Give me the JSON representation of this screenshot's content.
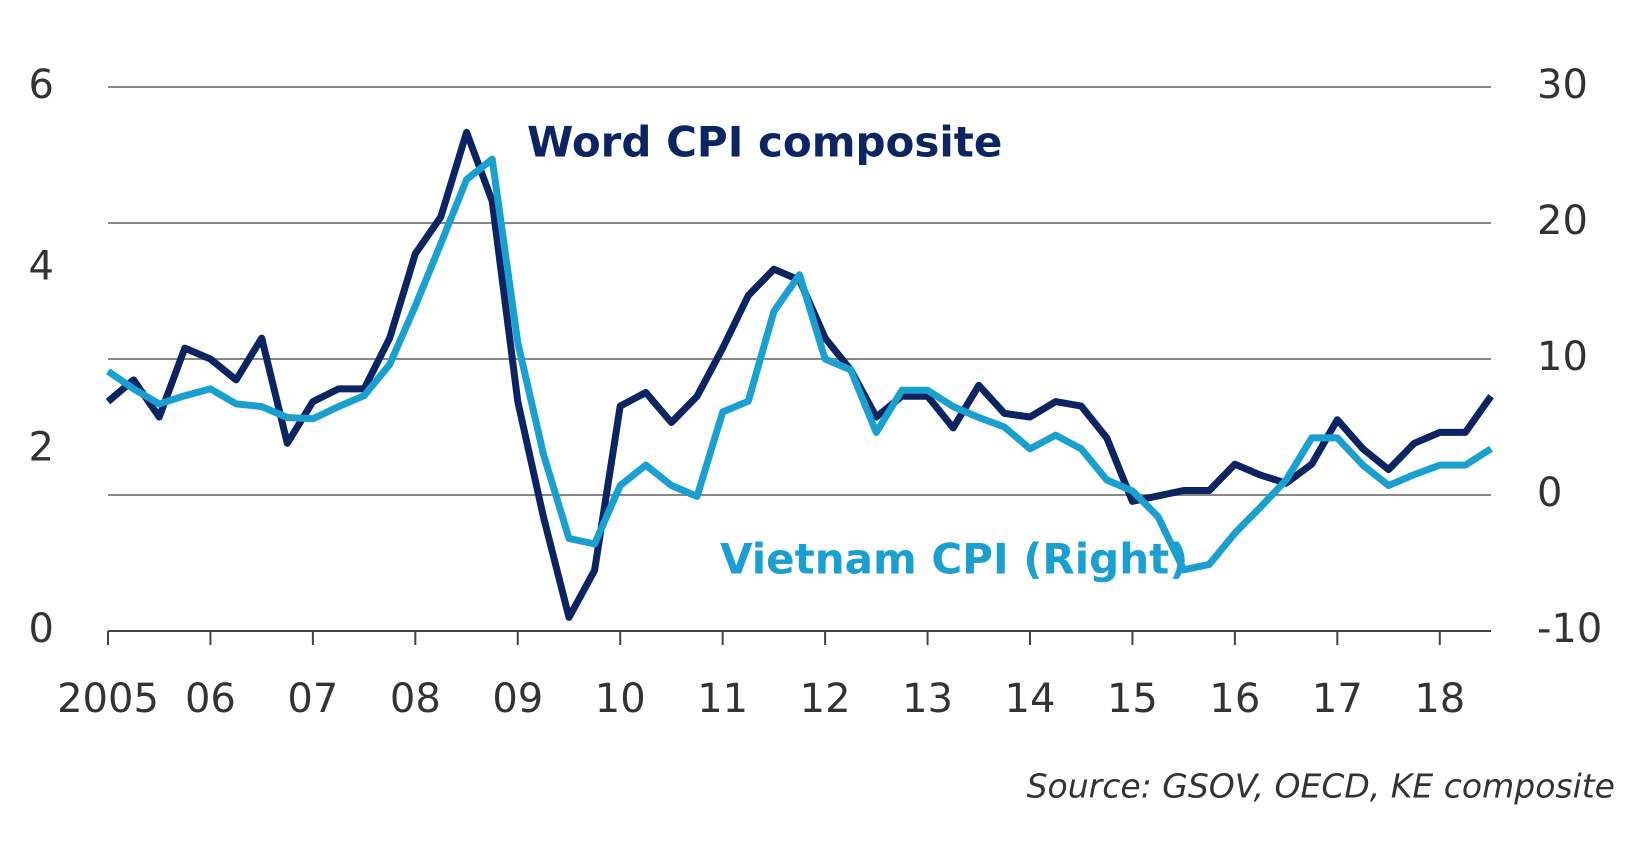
{
  "chart_data": {
    "type": "line",
    "x": [
      2005,
      2005.25,
      2005.5,
      2005.75,
      2006,
      2006.25,
      2006.5,
      2006.75,
      2007,
      2007.25,
      2007.5,
      2007.75,
      2008,
      2008.25,
      2008.5,
      2008.75,
      2009,
      2009.25,
      2009.5,
      2009.75,
      2010,
      2010.25,
      2010.5,
      2010.75,
      2011,
      2011.25,
      2011.5,
      2011.75,
      2012,
      2012.25,
      2012.5,
      2012.75,
      2013,
      2013.25,
      2013.5,
      2013.75,
      2014,
      2014.25,
      2014.5,
      2014.75,
      2015,
      2015.25,
      2015.5,
      2015.75,
      2016,
      2016.25,
      2016.5,
      2016.75,
      2017,
      2017.25,
      2017.5,
      2017.75,
      2018,
      2018.25,
      2018.5
    ],
    "series": [
      {
        "name": "Word CPI composite",
        "color": "#0c2461",
        "values": [
          2.53,
          2.77,
          2.36,
          3.12,
          3.0,
          2.77,
          3.23,
          2.07,
          2.53,
          2.67,
          2.67,
          3.23,
          4.16,
          4.57,
          5.5,
          4.74,
          2.53,
          1.26,
          0.15,
          0.67,
          2.48,
          2.63,
          2.3,
          2.59,
          3.12,
          3.7,
          3.99,
          3.87,
          3.23,
          2.88,
          2.36,
          2.59,
          2.59,
          2.24,
          2.71,
          2.4,
          2.36,
          2.53,
          2.48,
          2.13,
          1.43,
          1.49,
          1.55,
          1.55,
          1.84,
          1.72,
          1.63,
          1.84,
          2.33,
          2.01,
          1.78,
          2.07,
          2.19,
          2.19,
          2.59
        ]
      },
      {
        "name": "Vietnam CPI (Right)",
        "color": "#1a9fd1",
        "axis": "y2",
        "values": [
          9.1,
          7.8,
          6.7,
          7.3,
          7.8,
          6.7,
          6.5,
          5.7,
          5.6,
          6.5,
          7.3,
          9.6,
          13.9,
          18.5,
          23.2,
          24.7,
          11.2,
          3.0,
          -3.2,
          -3.6,
          0.7,
          2.2,
          0.7,
          -0.1,
          6.1,
          6.9,
          13.5,
          16.2,
          10.0,
          9.2,
          4.6,
          7.7,
          7.7,
          6.5,
          5.7,
          5.0,
          3.4,
          4.4,
          3.4,
          1.1,
          0.3,
          -1.6,
          -5.5,
          -5.1,
          -2.8,
          -0.9,
          1.1,
          4.2,
          4.2,
          2.2,
          0.7,
          1.5,
          2.2,
          2.2,
          3.4
        ]
      }
    ],
    "xlim": [
      2005,
      2018.5
    ],
    "xticks": [
      {
        "value": 2005,
        "label": "2005"
      },
      {
        "value": 2006,
        "label": "06"
      },
      {
        "value": 2007,
        "label": "07"
      },
      {
        "value": 2008,
        "label": "08"
      },
      {
        "value": 2009,
        "label": "09"
      },
      {
        "value": 2010,
        "label": "10"
      },
      {
        "value": 2011,
        "label": "11"
      },
      {
        "value": 2012,
        "label": "12"
      },
      {
        "value": 2013,
        "label": "13"
      },
      {
        "value": 2014,
        "label": "14"
      },
      {
        "value": 2015,
        "label": "15"
      },
      {
        "value": 2016,
        "label": "16"
      },
      {
        "value": 2017,
        "label": "17"
      },
      {
        "value": 2018,
        "label": "18"
      }
    ],
    "ylim": [
      0,
      6
    ],
    "yticks": [
      0,
      2,
      4,
      6
    ],
    "y2lim": [
      -10,
      30
    ],
    "y2ticks": [
      -10,
      0,
      10,
      20,
      30
    ],
    "grid": true,
    "source": "Source: GSOV, OECD, KE composite"
  }
}
